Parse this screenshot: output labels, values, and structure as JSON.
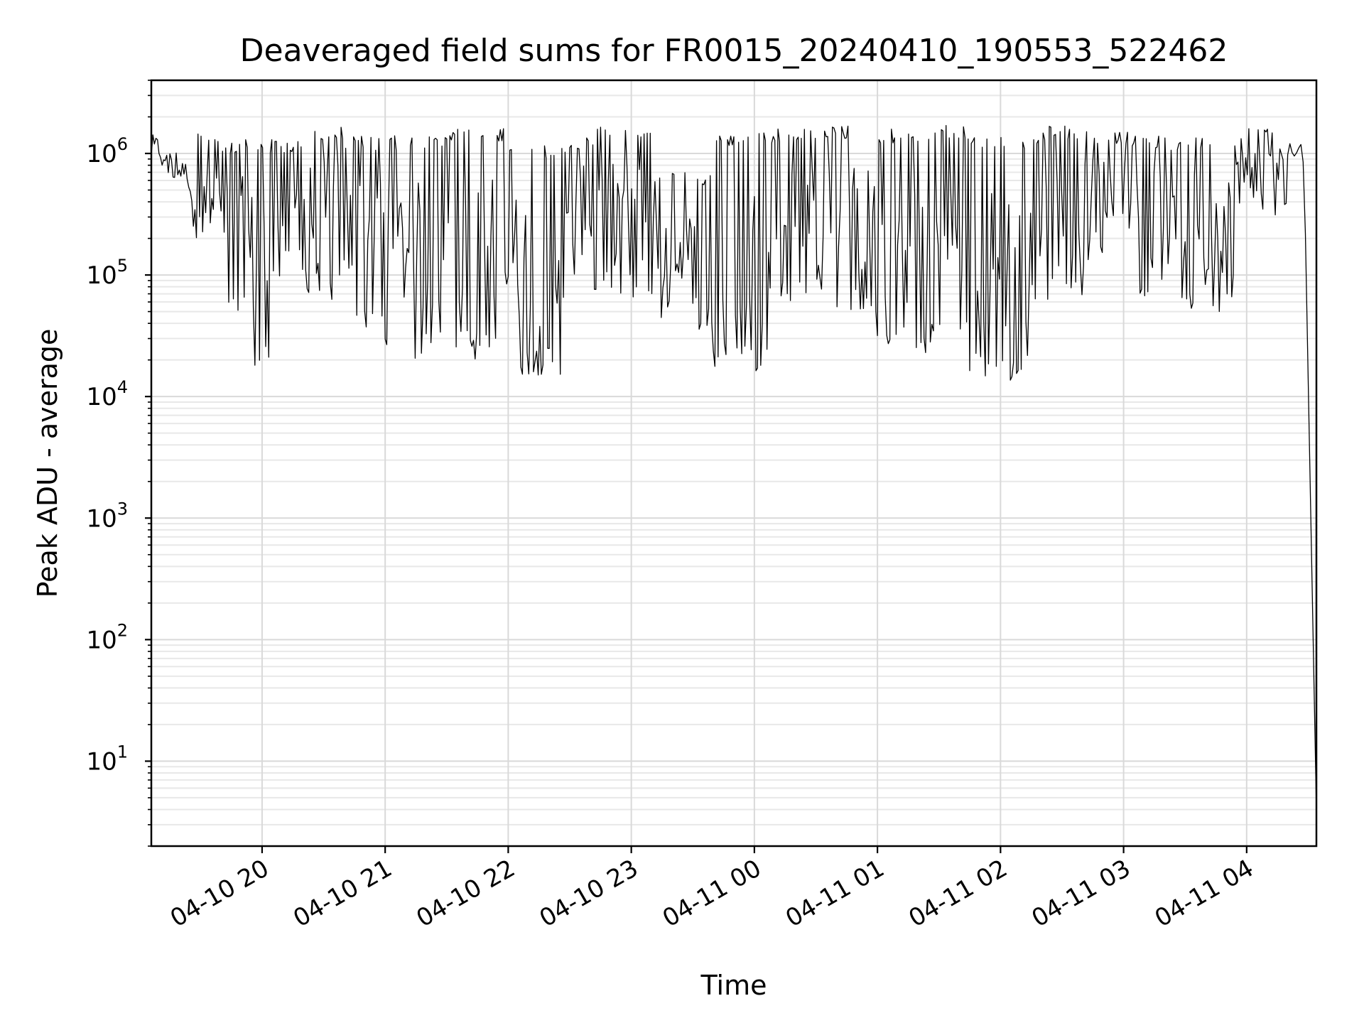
{
  "chart_data": {
    "type": "line",
    "title": "Deaveraged field sums for FR0015_20240410_190553_522462",
    "xlabel": "Time",
    "ylabel": "Peak ADU - average",
    "xlim": [
      "2024-04-10 19:06",
      "2024-04-11 04:34"
    ],
    "ylim": [
      2,
      4000000
    ],
    "yscale": "log",
    "grid": true,
    "x_ticks": [
      {
        "time": "2024-04-10 20:00",
        "label": "04-10 20"
      },
      {
        "time": "2024-04-10 21:00",
        "label": "04-10 21"
      },
      {
        "time": "2024-04-10 22:00",
        "label": "04-10 22"
      },
      {
        "time": "2024-04-10 23:00",
        "label": "04-10 23"
      },
      {
        "time": "2024-04-11 00:00",
        "label": "04-11 00"
      },
      {
        "time": "2024-04-11 01:00",
        "label": "04-11 01"
      },
      {
        "time": "2024-04-11 02:00",
        "label": "04-11 02"
      },
      {
        "time": "2024-04-11 03:00",
        "label": "04-11 03"
      },
      {
        "time": "2024-04-11 04:00",
        "label": "04-11 04"
      }
    ],
    "y_ticks": [
      {
        "value": 10,
        "base": "10",
        "exponent": "1"
      },
      {
        "value": 100,
        "base": "10",
        "exponent": "2"
      },
      {
        "value": 1000,
        "base": "10",
        "exponent": "3"
      },
      {
        "value": 10000,
        "base": "10",
        "exponent": "4"
      },
      {
        "value": 100000,
        "base": "10",
        "exponent": "5"
      },
      {
        "value": 1000000,
        "base": "10",
        "exponent": "6"
      }
    ],
    "series": [
      {
        "color": "#000000",
        "segments": [
          {
            "start": "2024-04-10 19:06",
            "end": "2024-04-10 19:12",
            "high": 1700000,
            "low": 700000
          },
          {
            "start": "2024-04-10 19:12",
            "end": "2024-04-10 19:25",
            "high": 1100000,
            "low": 500000
          },
          {
            "start": "2024-04-10 19:25",
            "end": "2024-04-10 19:40",
            "high": 1500000,
            "low": 200000
          },
          {
            "start": "2024-04-10 19:40",
            "end": "2024-04-10 19:52",
            "high": 1300000,
            "low": 40000
          },
          {
            "start": "2024-04-10 19:52",
            "end": "2024-04-10 20:10",
            "high": 1300000,
            "low": 16000
          },
          {
            "start": "2024-04-10 20:10",
            "end": "2024-04-10 20:22",
            "high": 1300000,
            "low": 90000
          },
          {
            "start": "2024-04-10 20:22",
            "end": "2024-04-10 20:40",
            "high": 1700000,
            "low": 60000
          },
          {
            "start": "2024-04-10 20:40",
            "end": "2024-04-10 21:00",
            "high": 1400000,
            "low": 35000
          },
          {
            "start": "2024-04-10 21:00",
            "end": "2024-04-10 21:30",
            "high": 1400000,
            "low": 20000
          },
          {
            "start": "2024-04-10 21:30",
            "end": "2024-04-10 22:00",
            "high": 1600000,
            "low": 20000
          },
          {
            "start": "2024-04-10 22:00",
            "end": "2024-04-10 22:30",
            "high": 1200000,
            "low": 15000
          },
          {
            "start": "2024-04-10 22:30",
            "end": "2024-04-10 22:42",
            "high": 1400000,
            "low": 80000
          },
          {
            "start": "2024-04-10 22:42",
            "end": "2024-04-10 23:10",
            "high": 1700000,
            "low": 60000
          },
          {
            "start": "2024-04-10 23:10",
            "end": "2024-04-10 23:40",
            "high": 700000,
            "low": 35000
          },
          {
            "start": "2024-04-10 23:40",
            "end": "2024-04-11 00:10",
            "high": 1500000,
            "low": 16000
          },
          {
            "start": "2024-04-11 00:10",
            "end": "2024-04-11 00:35",
            "high": 1600000,
            "low": 60000
          },
          {
            "start": "2024-04-11 00:35",
            "end": "2024-04-11 01:00",
            "high": 1700000,
            "low": 45000
          },
          {
            "start": "2024-04-11 01:00",
            "end": "2024-04-11 01:25",
            "high": 1600000,
            "low": 22000
          },
          {
            "start": "2024-04-11 01:25",
            "end": "2024-04-11 01:45",
            "high": 1700000,
            "low": 25000
          },
          {
            "start": "2024-04-11 01:45",
            "end": "2024-04-11 02:20",
            "high": 1400000,
            "low": 13000
          },
          {
            "start": "2024-04-11 02:20",
            "end": "2024-04-11 02:45",
            "high": 1700000,
            "low": 60000
          },
          {
            "start": "2024-04-11 02:45",
            "end": "2024-04-11 03:05",
            "high": 1500000,
            "low": 150000
          },
          {
            "start": "2024-04-11 03:05",
            "end": "2024-04-11 03:30",
            "high": 1400000,
            "low": 55000
          },
          {
            "start": "2024-04-11 03:30",
            "end": "2024-04-11 03:55",
            "high": 1400000,
            "low": 50000
          },
          {
            "start": "2024-04-11 03:55",
            "end": "2024-04-11 04:20",
            "high": 1700000,
            "low": 300000
          },
          {
            "start": "2024-04-11 04:20",
            "end": "2024-04-11 04:34",
            "high": 1400000,
            "low": 4
          }
        ]
      }
    ]
  }
}
